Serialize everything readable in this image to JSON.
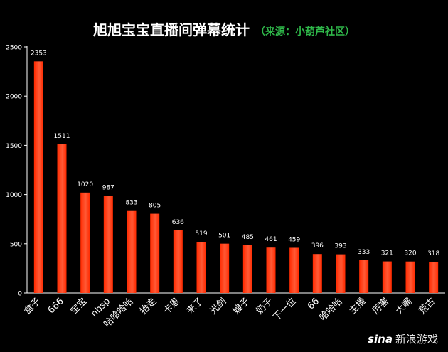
{
  "chart_data": {
    "type": "bar",
    "title": "旭旭宝宝直播间弹幕统计",
    "subtitle": "（来源：小葫芦社区）",
    "categories": [
      "盒子",
      "666",
      "宝宝",
      "nbsp",
      "哈哈哈哈",
      "抬走",
      "卡恩",
      "来了",
      "光剑",
      "嫂子",
      "奶子",
      "下一位",
      "66",
      "哈哈哈",
      "主播",
      "厉害",
      "大嘴",
      "荒古"
    ],
    "values": [
      2353,
      1511,
      1020,
      987,
      833,
      805,
      636,
      519,
      501,
      485,
      461,
      459,
      396,
      393,
      333,
      321,
      320,
      318
    ],
    "ylim": [
      0,
      2500
    ],
    "yticks": [
      0,
      500,
      1000,
      1500,
      2000,
      2500
    ],
    "xlabel": "",
    "ylabel": "",
    "grid": false,
    "legend": "none",
    "colors": {
      "background": "#000000",
      "bar": "#ff2a00",
      "bar_highlight": "#ff5a36",
      "text": "#ffffff",
      "subtitle": "#2fb84a",
      "axis": "#ffffff"
    }
  },
  "watermark": {
    "logo": "sina",
    "text": "新浪游戏"
  }
}
